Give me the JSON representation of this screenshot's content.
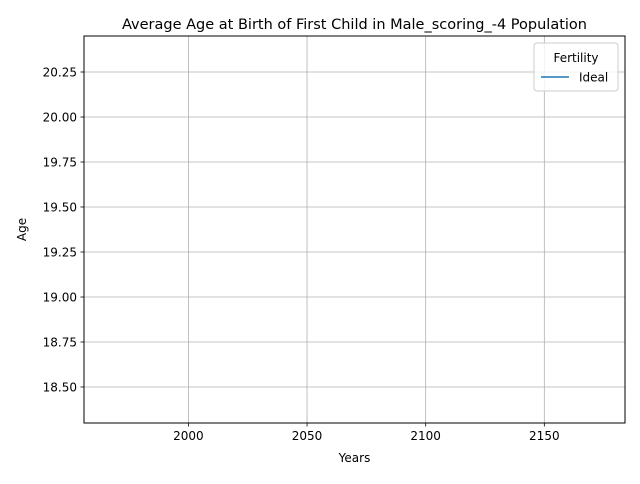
{
  "chart_data": {
    "type": "line",
    "title": "Average Age at Birth of First Child in Male_scoring_-4 Population",
    "xlabel": "Years",
    "ylabel": "Age",
    "xlim": [
      1956,
      2184
    ],
    "ylim": [
      18.3,
      20.45
    ],
    "x_ticks": [
      2000,
      2050,
      2100,
      2150
    ],
    "x_tick_labels": [
      "2000",
      "2050",
      "2100",
      "2150"
    ],
    "y_ticks": [
      18.5,
      18.75,
      19.0,
      19.25,
      19.5,
      19.75,
      20.0,
      20.25
    ],
    "y_tick_labels": [
      "18.50",
      "18.75",
      "19.00",
      "19.25",
      "19.50",
      "19.75",
      "20.00",
      "20.25"
    ],
    "grid": true,
    "legend": {
      "title": "Fertility",
      "placement": "top-right"
    },
    "series": [
      {
        "name": "Ideal",
        "color": "#1f77b4",
        "x": [],
        "y": []
      }
    ]
  }
}
